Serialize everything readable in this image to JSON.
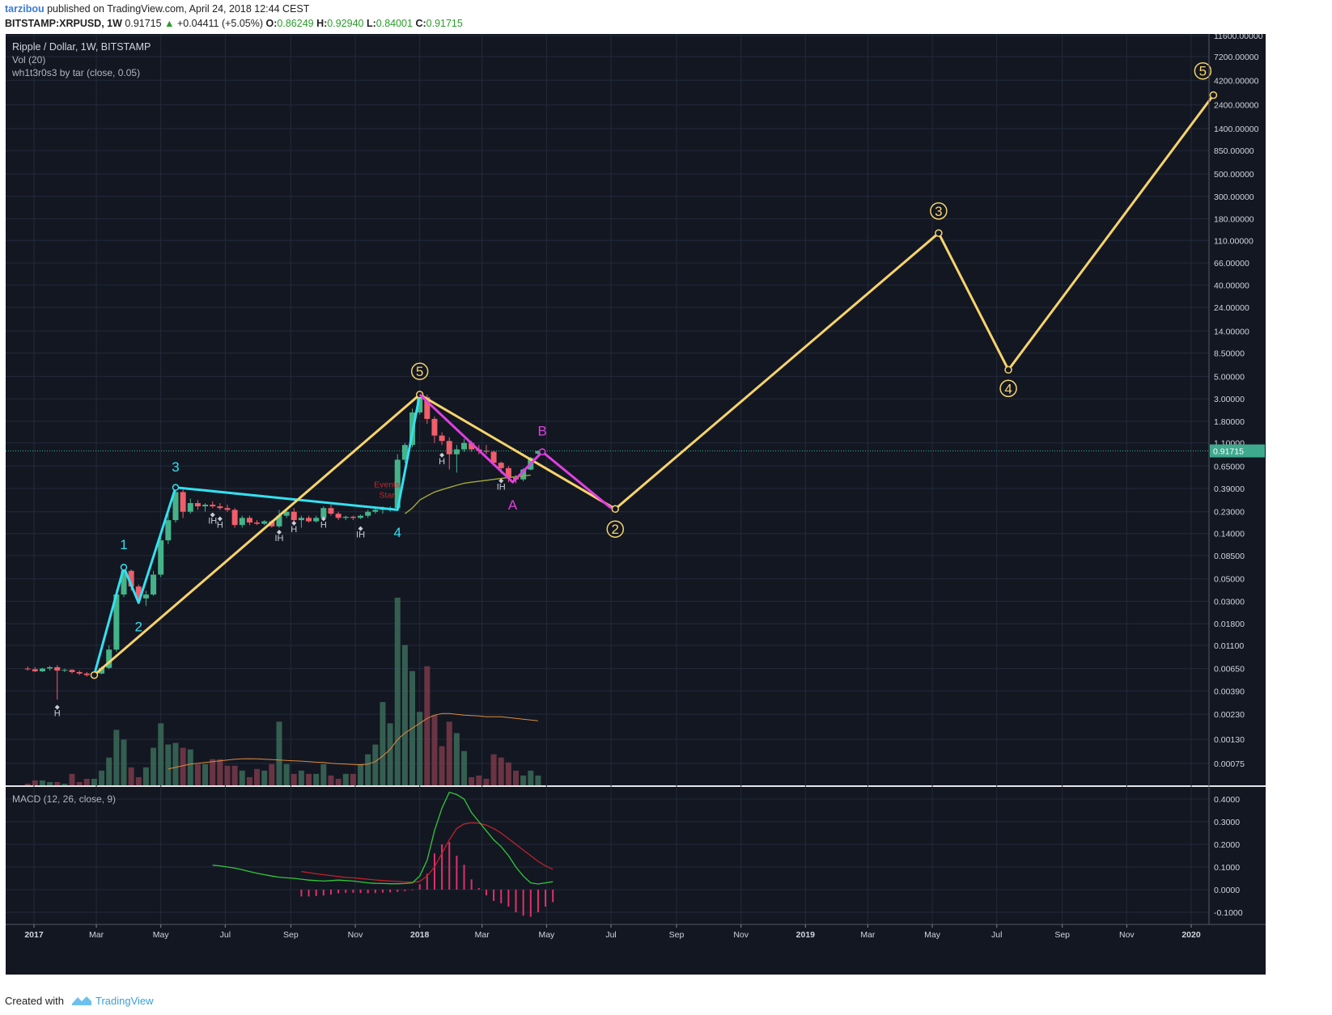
{
  "header": {
    "author": "tarzibou",
    "published": "published on TradingView.com, April 24, 2018 12:44 CEST",
    "symbol": "BITSTAMP:XRPUSD, 1W",
    "last": "0.91715",
    "change": "+0.04411 (+5.05%)",
    "ohlc": {
      "o_label": "O:",
      "o": "0.86249",
      "h_label": "H:",
      "h": "0.92940",
      "l_label": "L:",
      "l": "0.84001",
      "c_label": "C:",
      "c": "0.91715"
    }
  },
  "legend": {
    "title": "Ripple / Dollar, 1W, BITSTAMP",
    "vol": "Vol (20)",
    "indicator": "wh1t3r0s3 by tar (close, 0.05)",
    "macd": "MACD (12, 26, close, 9)"
  },
  "price_axis": {
    "ticks": [
      "11600.00000",
      "7200.00000",
      "4200.00000",
      "2400.00000",
      "1400.00000",
      "850.00000",
      "500.00000",
      "300.00000",
      "180.00000",
      "110.00000",
      "66.00000",
      "40.00000",
      "24.00000",
      "14.00000",
      "8.50000",
      "5.00000",
      "3.00000",
      "1.80000",
      "1.10000",
      "0.65000",
      "0.39000",
      "0.23000",
      "0.14000",
      "0.08500",
      "0.05000",
      "0.03000",
      "0.01800",
      "0.01100",
      "0.00650",
      "0.00390",
      "0.00230",
      "0.00130",
      "0.00075"
    ],
    "last_label": "0.91715"
  },
  "macd_axis": {
    "ticks": [
      "0.4000",
      "0.3000",
      "0.2000",
      "0.1000",
      "0.0000",
      "-0.1000"
    ]
  },
  "time_axis": {
    "ticks": [
      "2017",
      "Mar",
      "May",
      "Jul",
      "Sep",
      "Nov",
      "2018",
      "Mar",
      "May",
      "Jul",
      "Sep",
      "Nov",
      "2019",
      "Mar",
      "May",
      "Jul",
      "Sep",
      "Nov",
      "2020"
    ]
  },
  "chart_data": {
    "type": "line",
    "title": "Ripple / Dollar, 1W, BITSTAMP",
    "yscale": "log",
    "last_price": 0.91715,
    "candles": [
      {
        "t": "2016-12-26",
        "o": 0.0065,
        "h": 0.0068,
        "l": 0.0062,
        "c": 0.0064
      },
      {
        "t": "2017-01-02",
        "o": 0.0064,
        "h": 0.0067,
        "l": 0.006,
        "c": 0.0061
      },
      {
        "t": "2017-01-09",
        "o": 0.0061,
        "h": 0.0066,
        "l": 0.006,
        "c": 0.0065
      },
      {
        "t": "2017-01-16",
        "o": 0.0065,
        "h": 0.0069,
        "l": 0.0062,
        "c": 0.0067
      },
      {
        "t": "2017-01-23",
        "o": 0.0067,
        "h": 0.007,
        "l": 0.0032,
        "c": 0.0062
      },
      {
        "t": "2017-01-30",
        "o": 0.0062,
        "h": 0.0065,
        "l": 0.006,
        "c": 0.0063
      },
      {
        "t": "2017-02-06",
        "o": 0.0063,
        "h": 0.0064,
        "l": 0.0058,
        "c": 0.006
      },
      {
        "t": "2017-02-13",
        "o": 0.006,
        "h": 0.0062,
        "l": 0.0056,
        "c": 0.0058
      },
      {
        "t": "2017-02-20",
        "o": 0.0058,
        "h": 0.006,
        "l": 0.0054,
        "c": 0.0056
      },
      {
        "t": "2017-02-27",
        "o": 0.0056,
        "h": 0.006,
        "l": 0.0055,
        "c": 0.0058
      },
      {
        "t": "2017-03-06",
        "o": 0.0058,
        "h": 0.0068,
        "l": 0.0057,
        "c": 0.0066
      },
      {
        "t": "2017-03-13",
        "o": 0.0066,
        "h": 0.011,
        "l": 0.0064,
        "c": 0.01
      },
      {
        "t": "2017-03-20",
        "o": 0.01,
        "h": 0.039,
        "l": 0.0095,
        "c": 0.035
      },
      {
        "t": "2017-03-27",
        "o": 0.035,
        "h": 0.07,
        "l": 0.033,
        "c": 0.06
      },
      {
        "t": "2017-04-03",
        "o": 0.06,
        "h": 0.062,
        "l": 0.038,
        "c": 0.042
      },
      {
        "t": "2017-04-10",
        "o": 0.042,
        "h": 0.044,
        "l": 0.03,
        "c": 0.032
      },
      {
        "t": "2017-04-17",
        "o": 0.032,
        "h": 0.038,
        "l": 0.027,
        "c": 0.035
      },
      {
        "t": "2017-04-24",
        "o": 0.035,
        "h": 0.06,
        "l": 0.034,
        "c": 0.055
      },
      {
        "t": "2017-05-01",
        "o": 0.055,
        "h": 0.14,
        "l": 0.052,
        "c": 0.12
      },
      {
        "t": "2017-05-08",
        "o": 0.12,
        "h": 0.22,
        "l": 0.11,
        "c": 0.19
      },
      {
        "t": "2017-05-15",
        "o": 0.19,
        "h": 0.42,
        "l": 0.18,
        "c": 0.36
      },
      {
        "t": "2017-05-22",
        "o": 0.36,
        "h": 0.4,
        "l": 0.2,
        "c": 0.23
      },
      {
        "t": "2017-05-29",
        "o": 0.23,
        "h": 0.31,
        "l": 0.22,
        "c": 0.28
      },
      {
        "t": "2017-06-05",
        "o": 0.28,
        "h": 0.3,
        "l": 0.24,
        "c": 0.26
      },
      {
        "t": "2017-06-12",
        "o": 0.26,
        "h": 0.28,
        "l": 0.23,
        "c": 0.27
      },
      {
        "t": "2017-06-19",
        "o": 0.27,
        "h": 0.29,
        "l": 0.25,
        "c": 0.26
      },
      {
        "t": "2017-06-26",
        "o": 0.26,
        "h": 0.28,
        "l": 0.24,
        "c": 0.25
      },
      {
        "t": "2017-07-03",
        "o": 0.25,
        "h": 0.27,
        "l": 0.23,
        "c": 0.24
      },
      {
        "t": "2017-07-10",
        "o": 0.24,
        "h": 0.25,
        "l": 0.16,
        "c": 0.17
      },
      {
        "t": "2017-07-17",
        "o": 0.17,
        "h": 0.21,
        "l": 0.16,
        "c": 0.2
      },
      {
        "t": "2017-07-24",
        "o": 0.2,
        "h": 0.21,
        "l": 0.17,
        "c": 0.18
      },
      {
        "t": "2017-07-31",
        "o": 0.18,
        "h": 0.19,
        "l": 0.17,
        "c": 0.175
      },
      {
        "t": "2017-08-07",
        "o": 0.175,
        "h": 0.19,
        "l": 0.17,
        "c": 0.185
      },
      {
        "t": "2017-08-14",
        "o": 0.185,
        "h": 0.19,
        "l": 0.16,
        "c": 0.165
      },
      {
        "t": "2017-08-21",
        "o": 0.165,
        "h": 0.24,
        "l": 0.16,
        "c": 0.21
      },
      {
        "t": "2017-08-28",
        "o": 0.21,
        "h": 0.25,
        "l": 0.2,
        "c": 0.23
      },
      {
        "t": "2017-09-04",
        "o": 0.23,
        "h": 0.25,
        "l": 0.18,
        "c": 0.19
      },
      {
        "t": "2017-09-11",
        "o": 0.19,
        "h": 0.21,
        "l": 0.16,
        "c": 0.2
      },
      {
        "t": "2017-09-18",
        "o": 0.2,
        "h": 0.21,
        "l": 0.18,
        "c": 0.185
      },
      {
        "t": "2017-09-25",
        "o": 0.185,
        "h": 0.21,
        "l": 0.18,
        "c": 0.2
      },
      {
        "t": "2017-10-02",
        "o": 0.2,
        "h": 0.26,
        "l": 0.19,
        "c": 0.25
      },
      {
        "t": "2017-10-09",
        "o": 0.25,
        "h": 0.27,
        "l": 0.21,
        "c": 0.22
      },
      {
        "t": "2017-10-16",
        "o": 0.22,
        "h": 0.23,
        "l": 0.19,
        "c": 0.2
      },
      {
        "t": "2017-10-23",
        "o": 0.2,
        "h": 0.21,
        "l": 0.19,
        "c": 0.205
      },
      {
        "t": "2017-10-30",
        "o": 0.205,
        "h": 0.21,
        "l": 0.19,
        "c": 0.2
      },
      {
        "t": "2017-11-06",
        "o": 0.2,
        "h": 0.215,
        "l": 0.195,
        "c": 0.21
      },
      {
        "t": "2017-11-13",
        "o": 0.21,
        "h": 0.24,
        "l": 0.2,
        "c": 0.23
      },
      {
        "t": "2017-11-20",
        "o": 0.23,
        "h": 0.25,
        "l": 0.22,
        "c": 0.24
      },
      {
        "t": "2017-11-27",
        "o": 0.24,
        "h": 0.26,
        "l": 0.22,
        "c": 0.245
      },
      {
        "t": "2017-12-04",
        "o": 0.245,
        "h": 0.26,
        "l": 0.23,
        "c": 0.25
      },
      {
        "t": "2017-12-11",
        "o": 0.25,
        "h": 0.85,
        "l": 0.24,
        "c": 0.75
      },
      {
        "t": "2017-12-18",
        "o": 0.75,
        "h": 1.1,
        "l": 0.7,
        "c": 1.05
      },
      {
        "t": "2017-12-25",
        "o": 1.05,
        "h": 2.4,
        "l": 1.0,
        "c": 2.2
      },
      {
        "t": "2018-01-01",
        "o": 2.2,
        "h": 3.4,
        "l": 2.1,
        "c": 3.1
      },
      {
        "t": "2018-01-08",
        "o": 3.1,
        "h": 3.3,
        "l": 1.7,
        "c": 1.9
      },
      {
        "t": "2018-01-15",
        "o": 1.9,
        "h": 2.0,
        "l": 1.1,
        "c": 1.3
      },
      {
        "t": "2018-01-22",
        "o": 1.3,
        "h": 1.4,
        "l": 1.05,
        "c": 1.15
      },
      {
        "t": "2018-01-29",
        "o": 1.15,
        "h": 1.25,
        "l": 0.6,
        "c": 0.85
      },
      {
        "t": "2018-02-05",
        "o": 0.85,
        "h": 1.05,
        "l": 0.56,
        "c": 0.95
      },
      {
        "t": "2018-02-12",
        "o": 0.95,
        "h": 1.2,
        "l": 0.9,
        "c": 1.1
      },
      {
        "t": "2018-02-19",
        "o": 1.1,
        "h": 1.15,
        "l": 0.9,
        "c": 0.95
      },
      {
        "t": "2018-02-26",
        "o": 0.95,
        "h": 1.05,
        "l": 0.85,
        "c": 0.92
      },
      {
        "t": "2018-03-05",
        "o": 0.92,
        "h": 1.05,
        "l": 0.85,
        "c": 0.9
      },
      {
        "t": "2018-03-12",
        "o": 0.9,
        "h": 0.92,
        "l": 0.65,
        "c": 0.7
      },
      {
        "t": "2018-03-19",
        "o": 0.7,
        "h": 0.72,
        "l": 0.55,
        "c": 0.62
      },
      {
        "t": "2018-03-26",
        "o": 0.62,
        "h": 0.65,
        "l": 0.45,
        "c": 0.5
      },
      {
        "t": "2018-04-02",
        "o": 0.5,
        "h": 0.53,
        "l": 0.44,
        "c": 0.48
      },
      {
        "t": "2018-04-09",
        "o": 0.48,
        "h": 0.62,
        "l": 0.46,
        "c": 0.6
      },
      {
        "t": "2018-04-16",
        "o": 0.6,
        "h": 0.8,
        "l": 0.59,
        "c": 0.78
      },
      {
        "t": "2018-04-23",
        "o": 0.8625,
        "h": 0.9294,
        "l": 0.84,
        "c": 0.9172
      }
    ],
    "volume": [
      0.1,
      0.3,
      0.3,
      0.2,
      0.2,
      0.1,
      0.7,
      0.2,
      0.4,
      0.4,
      0.9,
      1.7,
      3.4,
      2.8,
      1.1,
      0.5,
      1.1,
      2.3,
      3.8,
      2.5,
      2.6,
      2.3,
      2.2,
      1.3,
      1.3,
      1.6,
      1.6,
      1.2,
      1.2,
      0.9,
      0.5,
      1.0,
      0.9,
      1.3,
      3.9,
      1.3,
      0.7,
      0.9,
      0.7,
      0.7,
      1.3,
      0.6,
      0.4,
      0.7,
      0.7,
      1.3,
      1.9,
      2.5,
      5.1,
      3.8,
      11.5,
      8.6,
      7.0,
      4.5,
      7.3,
      4.3,
      2.4,
      3.9,
      3.2,
      2.1,
      0.5,
      0.6,
      0.4,
      1.9,
      1.7,
      1.4,
      0.9,
      0.6,
      0.9,
      0.6
    ],
    "volume_sma": [
      null,
      null,
      null,
      null,
      null,
      null,
      null,
      null,
      null,
      null,
      null,
      null,
      null,
      null,
      null,
      null,
      null,
      null,
      null,
      1.0,
      1.1,
      1.2,
      1.3,
      1.35,
      1.4,
      1.45,
      1.5,
      1.55,
      1.6,
      1.62,
      1.63,
      1.62,
      1.6,
      1.58,
      1.55,
      1.52,
      1.5,
      1.48,
      1.45,
      1.42,
      1.4,
      1.35,
      1.32,
      1.3,
      1.28,
      1.26,
      1.3,
      1.45,
      1.8,
      2.2,
      2.8,
      3.2,
      3.5,
      3.8,
      4.1,
      4.3,
      4.4,
      4.4,
      4.35,
      4.3,
      4.28,
      4.25,
      4.2,
      4.2,
      4.2,
      4.15,
      4.1,
      4.05,
      4.0,
      3.95
    ],
    "ma_line": {
      "t_start": "2017-12-18",
      "values": [
        0.22,
        0.25,
        0.3,
        0.33,
        0.36,
        0.38,
        0.4,
        0.42,
        0.44,
        0.45,
        0.46,
        0.47,
        0.48,
        0.49,
        0.5,
        0.51,
        0.52,
        0.53
      ]
    },
    "macd": {
      "t_start": "2017-06-19",
      "macd": [
        0.108,
        0.105,
        0.1,
        0.095,
        0.088,
        0.08,
        0.072,
        0.066,
        0.06,
        0.055,
        0.052,
        0.05,
        0.046,
        0.042,
        0.04,
        0.038,
        0.04,
        0.042,
        0.04,
        0.038,
        0.034,
        0.03,
        0.028,
        0.027,
        0.026,
        0.026,
        0.027,
        0.03,
        0.06,
        0.13,
        0.26,
        0.36,
        0.43,
        0.42,
        0.4,
        0.34,
        0.3,
        0.26,
        0.22,
        0.19,
        0.15,
        0.1,
        0.06,
        0.03,
        0.025,
        0.03,
        0.035
      ],
      "signal": [
        null,
        null,
        null,
        null,
        null,
        null,
        null,
        null,
        null,
        null,
        null,
        null,
        0.08,
        0.075,
        0.07,
        0.066,
        0.062,
        0.058,
        0.054,
        0.052,
        0.049,
        0.046,
        0.043,
        0.04,
        0.038,
        0.036,
        0.034,
        0.033,
        0.036,
        0.06,
        0.1,
        0.16,
        0.22,
        0.27,
        0.29,
        0.295,
        0.293,
        0.285,
        0.27,
        0.25,
        0.225,
        0.2,
        0.175,
        0.15,
        0.125,
        0.105,
        0.09
      ],
      "hist": [
        null,
        null,
        null,
        null,
        null,
        null,
        null,
        null,
        null,
        null,
        null,
        null,
        -0.03,
        -0.03,
        -0.028,
        -0.026,
        -0.022,
        -0.016,
        -0.014,
        -0.014,
        -0.015,
        -0.016,
        -0.015,
        -0.013,
        -0.012,
        -0.01,
        -0.007,
        -0.003,
        0.024,
        0.07,
        0.16,
        0.2,
        0.21,
        0.15,
        0.11,
        0.045,
        0.007,
        -0.025,
        -0.05,
        -0.06,
        -0.075,
        -0.1,
        -0.115,
        -0.12,
        -0.1,
        -0.075,
        -0.055
      ]
    },
    "wave_lines": [
      {
        "name": "cyan",
        "color": "#33e0f0",
        "points": [
          {
            "t": "2017-02-27",
            "v": 0.0056
          },
          {
            "t": "2017-03-27",
            "v": 0.065
          },
          {
            "t": "2017-04-10",
            "v": 0.029
          },
          {
            "t": "2017-05-15",
            "v": 0.4
          },
          {
            "t": "2017-12-11",
            "v": 0.24
          },
          {
            "t": "2018-01-01",
            "v": 3.3
          }
        ]
      },
      {
        "name": "yellow",
        "color": "#f7d36b",
        "points": [
          {
            "t": "2017-02-27",
            "v": 0.0056
          },
          {
            "t": "2018-01-01",
            "v": 3.3
          },
          {
            "t": "2018-07-05",
            "v": 0.245
          },
          {
            "t": "2019-05-07",
            "v": 130
          },
          {
            "t": "2019-07-12",
            "v": 5.8
          },
          {
            "t": "2020-01-22",
            "v": 3000
          }
        ]
      },
      {
        "name": "magenta",
        "color": "#e040e0",
        "points": [
          {
            "t": "2018-01-01",
            "v": 3.3
          },
          {
            "t": "2018-03-30",
            "v": 0.45
          },
          {
            "t": "2018-04-27",
            "v": 0.9
          },
          {
            "t": "2018-07-01",
            "v": 0.25
          }
        ]
      }
    ],
    "wave_labels": [
      {
        "text": "1",
        "color": "#33e0f0",
        "t": "2017-03-27",
        "v": 0.11,
        "circled": false
      },
      {
        "text": "2",
        "color": "#33e0f0",
        "t": "2017-04-10",
        "v": 0.017,
        "circled": false
      },
      {
        "text": "3",
        "color": "#33e0f0",
        "t": "2017-05-15",
        "v": 0.64,
        "circled": false
      },
      {
        "text": "4",
        "color": "#33e0f0",
        "t": "2017-12-11",
        "v": 0.145,
        "circled": false
      },
      {
        "text": "5",
        "color": "#33e0f0",
        "t": "2018-01-01",
        "v": 5.6,
        "circled": false
      },
      {
        "text": "5",
        "color": "#f7d36b",
        "t": "2018-01-01",
        "v": 5.6,
        "circled": true
      },
      {
        "text": "B",
        "color": "#e040e0",
        "t": "2018-04-27",
        "v": 1.45,
        "circled": false
      },
      {
        "text": "A",
        "color": "#e040e0",
        "t": "2018-03-30",
        "v": 0.27,
        "circled": false
      },
      {
        "text": "2",
        "color": "#f7d36b",
        "t": "2018-07-05",
        "v": 0.155,
        "circled": true
      },
      {
        "text": "3",
        "color": "#f7d36b",
        "t": "2019-05-07",
        "v": 215,
        "circled": true
      },
      {
        "text": "4",
        "color": "#f7d36b",
        "t": "2019-07-12",
        "v": 3.8,
        "circled": true
      },
      {
        "text": "5",
        "color": "#f7d36b",
        "t": "2020-01-12",
        "v": 5200,
        "circled": true
      }
    ],
    "markers": [
      {
        "text": "H",
        "t": "2017-01-23",
        "v": 0.0022
      },
      {
        "text": "IH",
        "t": "2017-06-19",
        "v": 0.175
      },
      {
        "text": "H",
        "t": "2017-06-26",
        "v": 0.16
      },
      {
        "text": "IH",
        "t": "2017-08-21",
        "v": 0.118
      },
      {
        "text": "H",
        "t": "2017-09-04",
        "v": 0.145
      },
      {
        "text": "H",
        "t": "2017-10-02",
        "v": 0.16
      },
      {
        "text": "IH",
        "t": "2017-11-06",
        "v": 0.128
      },
      {
        "text": "H",
        "t": "2018-01-22",
        "v": 0.68
      },
      {
        "text": "IH",
        "t": "2018-03-19",
        "v": 0.38
      }
    ],
    "annotation": {
      "text": "Events\nStar",
      "color": "#c0292b",
      "t": "2017-12-01",
      "v": 0.4
    }
  },
  "footer": {
    "created": "Created with",
    "brand": "TradingView"
  }
}
